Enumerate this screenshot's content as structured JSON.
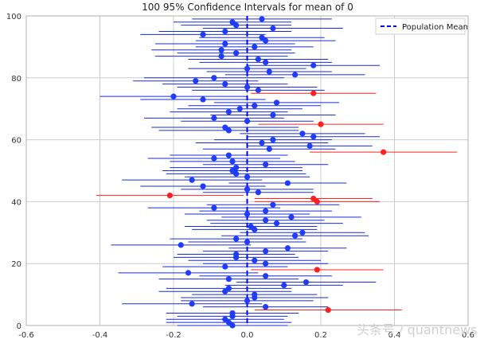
{
  "chart_data": {
    "type": "scatter",
    "title": "100 95% Confidence Intervals for mean of 0",
    "xlabel": "",
    "ylabel": "",
    "xlim": [
      -0.6,
      0.6
    ],
    "ylim": [
      0,
      100
    ],
    "xticks": [
      "-0.6",
      "-0.4",
      "-0.2",
      "0.0",
      "0.2",
      "0.4",
      "0.6"
    ],
    "yticks": [
      "0",
      "20",
      "40",
      "60",
      "80",
      "100"
    ],
    "grid": true,
    "legend": {
      "position": "top-right",
      "entries": [
        {
          "label": "Population Mean",
          "style": "dashed-line",
          "color": "#0000ff"
        }
      ]
    },
    "population_mean": 0,
    "colors": {
      "contains_mean": "#1f3cff",
      "interval_line": "#1a2bd6",
      "misses_mean": "#ff2020",
      "mean_line": "#0000ff"
    },
    "series": [
      {
        "name": "",
        "means": [
          -0.04,
          -0.05,
          -0.06,
          -0.04,
          -0.04,
          0.22,
          0.05,
          -0.15,
          0.0,
          0.02,
          0.02,
          -0.06,
          -0.05,
          0.1,
          0.16,
          -0.05,
          0.05,
          -0.16,
          0.19,
          -0.06,
          0.05,
          0.02,
          -0.03,
          -0.03,
          0.05,
          0.11,
          -0.18,
          0.0,
          -0.03,
          0.13,
          0.15,
          0.02,
          0.01,
          0.08,
          0.05,
          0.12,
          0.0,
          0.05,
          -0.09,
          0.07,
          0.19,
          0.18,
          -0.21,
          0.03,
          0.0,
          -0.12,
          0.11,
          -0.15,
          0.0,
          -0.03,
          -0.04,
          -0.03,
          0.05,
          -0.04,
          -0.09,
          -0.05,
          0.37,
          0.06,
          0.17,
          0.04,
          0.07,
          0.18,
          0.15,
          -0.05,
          -0.06,
          0.2,
          0.0,
          -0.09,
          0.07,
          -0.05,
          -0.02,
          0.02,
          0.08,
          -0.12,
          -0.2,
          0.18,
          0.03,
          0.0,
          -0.06,
          -0.14,
          -0.09,
          0.13,
          0.06,
          0.0,
          0.18,
          0.05,
          0.03,
          -0.07,
          -0.03,
          -0.07,
          0.02,
          -0.06,
          0.05,
          0.04,
          -0.12,
          -0.06,
          0.07,
          -0.03,
          -0.04,
          0.04
        ],
        "halfwidths": [
          0.15,
          0.17,
          0.16,
          0.15,
          0.18,
          0.2,
          0.17,
          0.19,
          0.18,
          0.2,
          0.17,
          0.18,
          0.17,
          0.16,
          0.19,
          0.19,
          0.18,
          0.19,
          0.18,
          0.17,
          0.17,
          0.18,
          0.17,
          0.16,
          0.17,
          0.16,
          0.19,
          0.16,
          0.18,
          0.2,
          0.17,
          0.17,
          0.18,
          0.18,
          0.16,
          0.19,
          0.17,
          0.18,
          0.18,
          0.18,
          0.17,
          0.16,
          0.2,
          0.15,
          0.18,
          0.17,
          0.16,
          0.19,
          0.17,
          0.19,
          0.19,
          0.18,
          0.17,
          0.17,
          0.18,
          0.16,
          0.2,
          0.18,
          0.17,
          0.18,
          0.16,
          0.18,
          0.17,
          0.19,
          0.2,
          0.17,
          0.18,
          0.19,
          0.17,
          0.16,
          0.17,
          0.18,
          0.17,
          0.17,
          0.2,
          0.17,
          0.18,
          0.19,
          0.17,
          0.17,
          0.19,
          0.19,
          0.17,
          0.16,
          0.18,
          0.18,
          0.19,
          0.18,
          0.16,
          0.19,
          0.16,
          0.19,
          0.19,
          0.17,
          0.17,
          0.18,
          0.19,
          0.15,
          0.16,
          0.19
        ]
      }
    ]
  },
  "watermark": "头条号 / quantnews"
}
